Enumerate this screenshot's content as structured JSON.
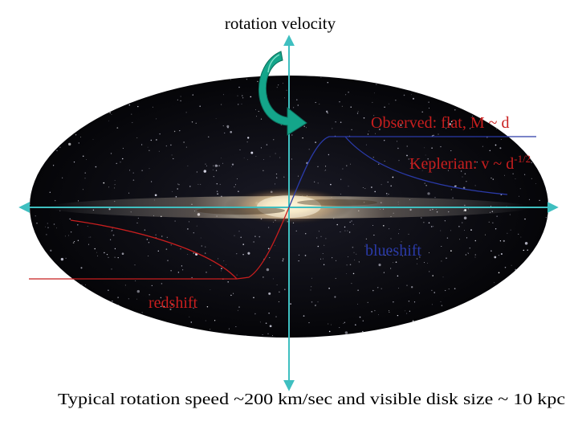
{
  "title": "rotation velocity",
  "labels": {
    "observed": "Observed: flat, M ~ d",
    "keplerian_base": "Keplerian: v ~ d",
    "keplerian_exponent": "-1/2",
    "blueshift": "blueshift",
    "redshift": "redshift"
  },
  "caption": "Typical rotation speed ~200 km/sec and visible disk size ~ 10 kpc",
  "colors": {
    "background": "#ffffff",
    "galaxy_sky": "#0b0b12",
    "axis": "#3fbfc0",
    "blue_curve": "#2a3aa8",
    "red_curve": "#c81e1e",
    "rotation_arrow": "#14a58a",
    "label_red": "#c81e1e",
    "label_blue": "#2a3aa8",
    "text": "#000000"
  },
  "icons": {
    "rotation_arrow": "curved-arrow-icon"
  }
}
